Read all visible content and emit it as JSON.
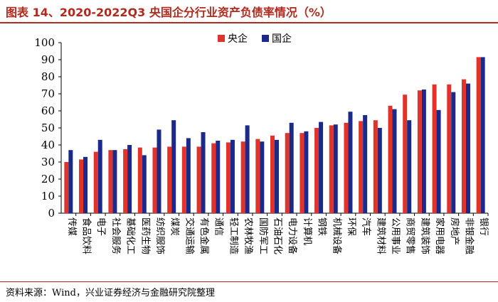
{
  "title": "图表 14、2020-2022Q3 央国企分行业资产负债率情况（%）",
  "source": "资料来源：Wind，兴业证券经济与金融研究院整理",
  "colors": {
    "central": "#e2332a",
    "state": "#1b2a8a",
    "accent": "#b22a1e"
  },
  "chart_data": {
    "type": "bar",
    "title": "2020-2022Q3 央国企分行业资产负债率情况（%）",
    "xlabel": "",
    "ylabel": "",
    "ylim": [
      0,
      100
    ],
    "yticks": [
      0,
      10,
      20,
      30,
      40,
      50,
      60,
      70,
      80,
      90,
      100
    ],
    "legend_position": "top-center",
    "categories": [
      "传媒",
      "食品饮料",
      "电子",
      "社会服务",
      "基础化工",
      "医药生物",
      "纺织服饰",
      "煤炭",
      "交通运输",
      "有色金属",
      "通信",
      "轻工制造",
      "农林牧渔",
      "国防军工",
      "石油石化",
      "电力设备",
      "计算机",
      "钢铁",
      "机械设备",
      "环保",
      "汽车",
      "建筑材料",
      "公用事业",
      "商贸零售",
      "建筑装饰",
      "家用电器",
      "房地产",
      "非银金融",
      "银行"
    ],
    "series": [
      {
        "name": "央企",
        "values": [
          30,
          31.5,
          36,
          37,
          37.5,
          38.5,
          38.5,
          39,
          39,
          39,
          41,
          41.5,
          42,
          43.5,
          45.5,
          47,
          47,
          50,
          51.5,
          53,
          54,
          54.5,
          63,
          69.5,
          72,
          75.5,
          75.5,
          78.5,
          91.5
        ]
      },
      {
        "name": "国企",
        "values": [
          37,
          33,
          43,
          37,
          40,
          34,
          49,
          54.5,
          44,
          47.5,
          42.5,
          43,
          51.5,
          42,
          43,
          53,
          48,
          53.5,
          52,
          59.5,
          57.5,
          50,
          61,
          54.5,
          72.5,
          60.5,
          71,
          76,
          91.5
        ]
      }
    ]
  }
}
